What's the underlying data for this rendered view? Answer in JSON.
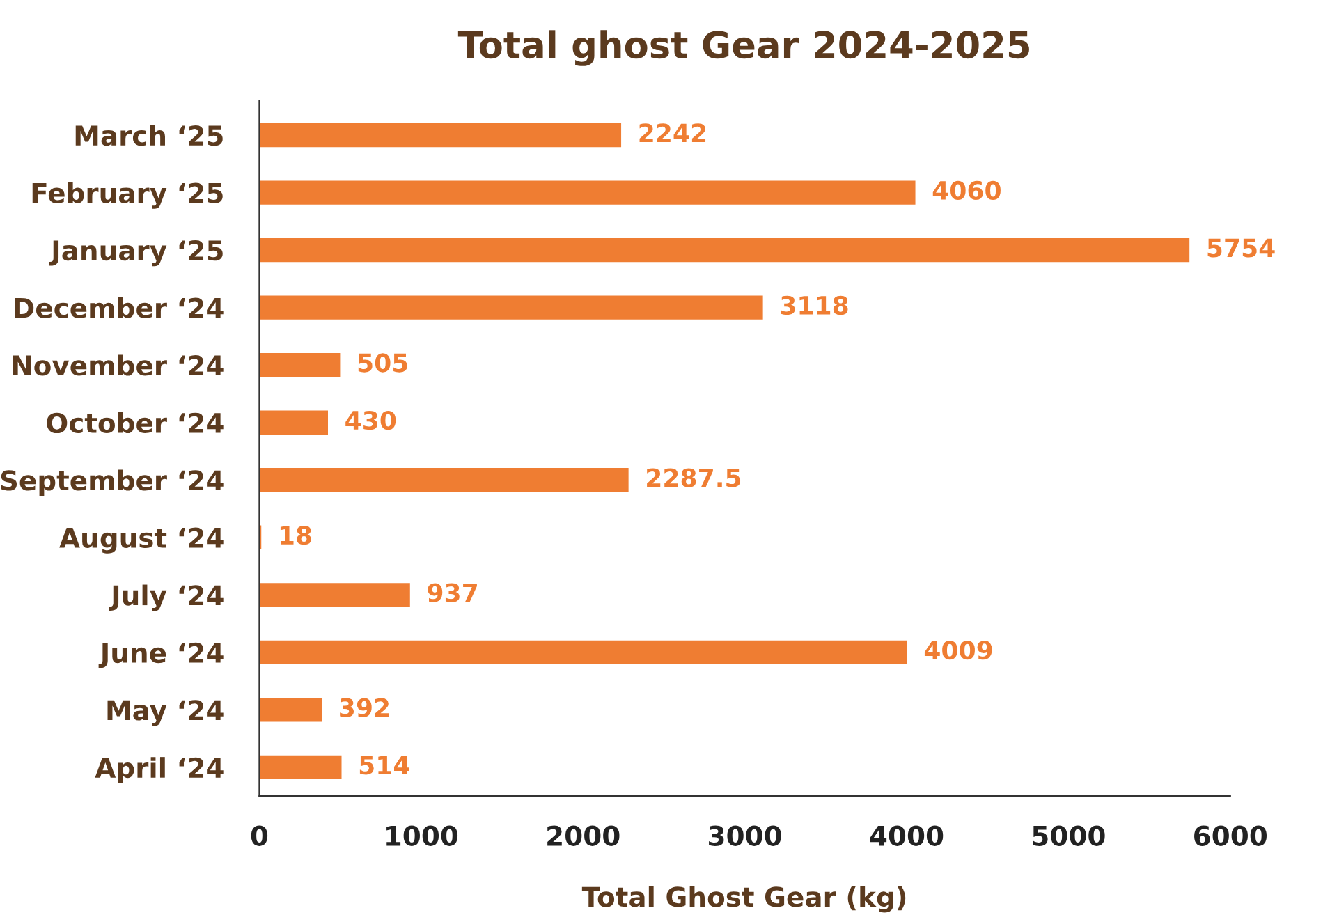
{
  "chart_data": {
    "type": "bar",
    "orientation": "horizontal",
    "title": "Total ghost Gear 2024-2025",
    "xlabel": "Total Ghost Gear (kg)",
    "categories": [
      "March ‘25",
      "February ‘25",
      "January ‘25",
      "December ‘24",
      "November ‘24",
      "October ‘24",
      "September ‘24",
      "August ‘24",
      "July ‘24",
      "June ‘24",
      "May ‘24",
      "April ‘24"
    ],
    "values": [
      2242,
      4060,
      5754,
      3118,
      505,
      430,
      2287.5,
      18,
      937,
      4009,
      392,
      514
    ],
    "color": "#ef7d32",
    "xlim": [
      0,
      6000
    ],
    "xticks": [
      0,
      1000,
      2000,
      3000,
      4000,
      5000,
      6000
    ],
    "grid": false,
    "data_labels": true,
    "legend": false
  }
}
